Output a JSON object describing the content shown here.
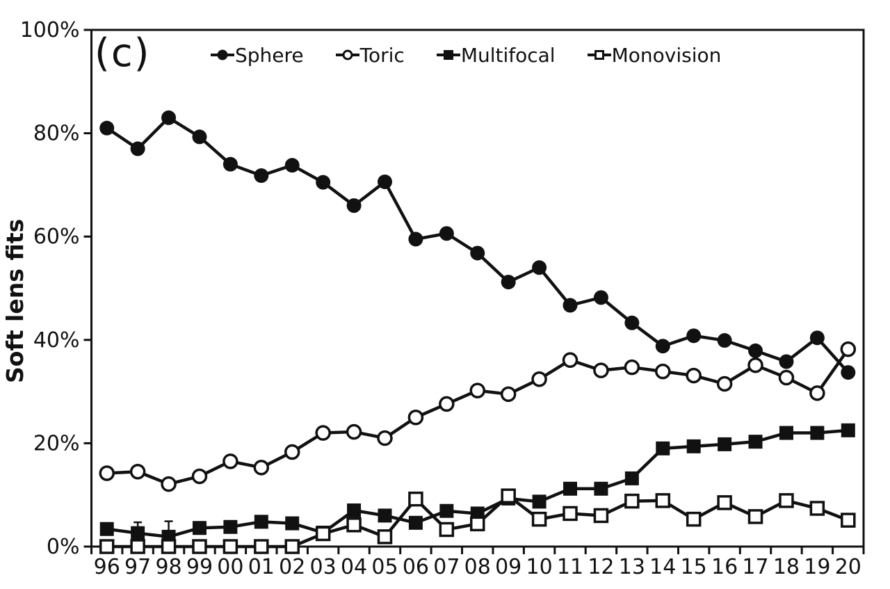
{
  "chart_data": {
    "type": "line",
    "panel_label": "(c)",
    "title": "",
    "xlabel": "",
    "ylabel": "Soft lens fits",
    "ylim": [
      0,
      100
    ],
    "grid": false,
    "legend_position": "top",
    "colors": {
      "foreground": "#111111",
      "background": "#ffffff"
    },
    "y_ticks": [
      {
        "value": 0,
        "label": "0%"
      },
      {
        "value": 20,
        "label": "20%"
      },
      {
        "value": 40,
        "label": "40%"
      },
      {
        "value": 60,
        "label": "60%"
      },
      {
        "value": 80,
        "label": "80%"
      },
      {
        "value": 100,
        "label": "100%"
      }
    ],
    "categories": [
      "96",
      "97",
      "98",
      "99",
      "00",
      "01",
      "02",
      "03",
      "04",
      "05",
      "06",
      "07",
      "08",
      "09",
      "10",
      "11",
      "12",
      "13",
      "14",
      "15",
      "16",
      "17",
      "18",
      "19",
      "20"
    ],
    "series": [
      {
        "name": "Sphere",
        "marker": "filled-circle",
        "values": [
          81,
          77,
          83,
          79.3,
          74,
          71.8,
          73.8,
          70.5,
          66,
          70.6,
          59.5,
          60.6,
          56.8,
          51.2,
          54,
          46.7,
          48.2,
          43.3,
          38.8,
          40.8,
          39.9,
          37.9,
          35.8,
          40.4,
          33.7
        ]
      },
      {
        "name": "Toric",
        "marker": "open-circle",
        "values": [
          14.2,
          14.5,
          12.1,
          13.6,
          16.5,
          15.3,
          18.3,
          22,
          22.2,
          21,
          25,
          27.6,
          30.2,
          29.5,
          32.4,
          36.1,
          34.1,
          34.7,
          33.9,
          33.1,
          31.5,
          35.1,
          32.7,
          29.7,
          38.2
        ]
      },
      {
        "name": "Multifocal",
        "marker": "filled-square",
        "values": [
          3.4,
          2.6,
          1.9,
          3.6,
          3.8,
          4.8,
          4.5,
          2.7,
          7,
          6,
          4.6,
          6.9,
          6.4,
          9.3,
          8.7,
          11.2,
          11.2,
          13.2,
          19,
          19.4,
          19.8,
          20.3,
          22,
          22,
          22.5
        ]
      },
      {
        "name": "Monovision",
        "marker": "open-square",
        "values": [
          0,
          0,
          0,
          0,
          0,
          0,
          0,
          2.5,
          4.2,
          1.9,
          9.2,
          3.3,
          4.4,
          9.8,
          5.3,
          6.4,
          6,
          8.8,
          8.9,
          5.3,
          8.5,
          5.8,
          8.9,
          7.4,
          5.1
        ]
      }
    ],
    "error_bars": [
      {
        "series": "Multifocal",
        "category": "97",
        "upper": 4.7
      },
      {
        "series": "Multifocal",
        "category": "98",
        "upper": 4.9
      }
    ]
  }
}
